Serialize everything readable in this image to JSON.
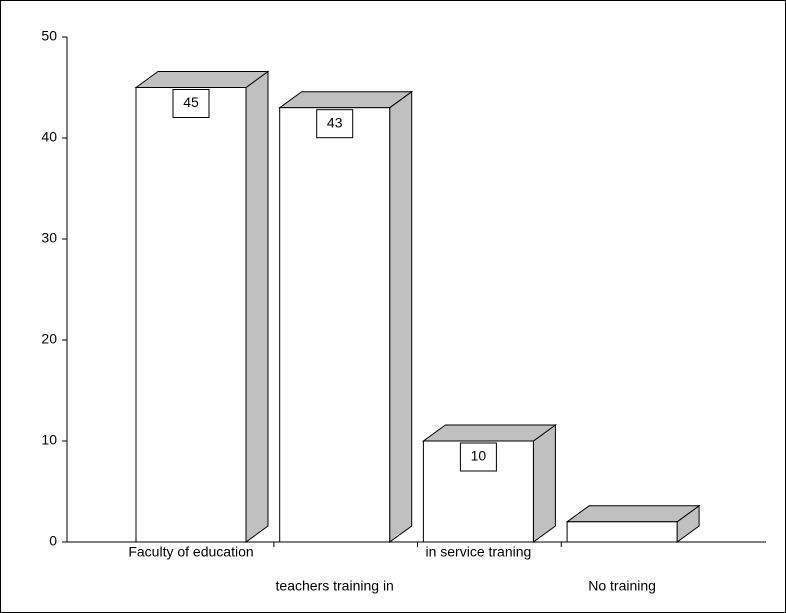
{
  "chart_data": {
    "type": "bar3d",
    "categories": [
      "Faculty of education",
      "teachers training in",
      "in service traning",
      "No training"
    ],
    "values": [
      45,
      43,
      10,
      2
    ],
    "value_labels": [
      "45",
      "43",
      "10",
      null
    ],
    "color": "#ffffff",
    "side_color": "#c0c0c0",
    "ylim": [
      0,
      50
    ],
    "yticks": [
      0,
      10,
      20,
      30,
      40,
      50
    ],
    "grid": false
  }
}
